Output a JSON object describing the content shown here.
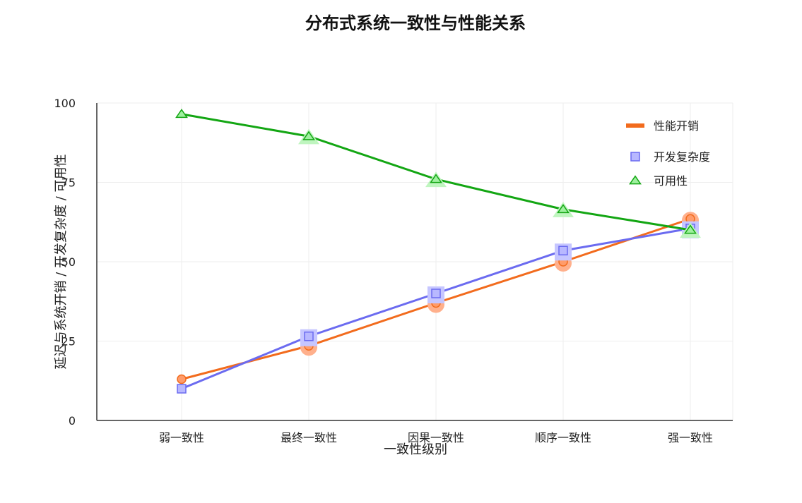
{
  "chart_data": {
    "type": "line",
    "title": "分布式系统一致性与性能关系",
    "xlabel": "一致性级别",
    "ylabel": "延迟与系统开销 / 开发复杂度 / 可用性",
    "categories": [
      "弱一致性",
      "最终一致性",
      "因果一致性",
      "顺序一致性",
      "强一致性"
    ],
    "ylim": [
      0,
      100
    ],
    "yticks": [
      "0",
      "25",
      "50",
      "75",
      "100"
    ],
    "grid": true,
    "legend_position": "top-right",
    "series": [
      {
        "name": "性能开销",
        "marker": "circle",
        "color": "#f26b1d",
        "values": [
          13,
          23.5,
          37,
          50,
          63.5
        ]
      },
      {
        "name": "开发复杂度",
        "marker": "square",
        "color": "#6b6bf0",
        "values": [
          10,
          26.5,
          40,
          53.5,
          60.5
        ]
      },
      {
        "name": "可用性",
        "marker": "triangle",
        "color": "#13a613",
        "values": [
          96.5,
          89.5,
          76,
          66.5,
          60
        ]
      }
    ]
  }
}
